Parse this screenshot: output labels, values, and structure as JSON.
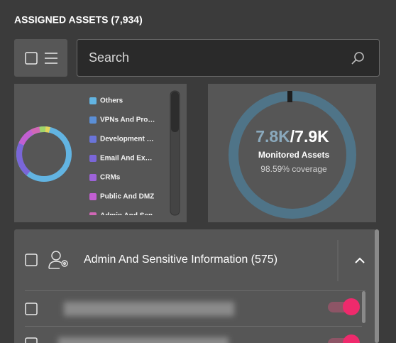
{
  "header": {
    "title": "ASSIGNED ASSETS (7,934)"
  },
  "search": {
    "placeholder": "Search"
  },
  "legend": {
    "items": [
      {
        "label": "Others",
        "color": "#62b4e2"
      },
      {
        "label": "VPNs And Pro…",
        "color": "#5b8fd6"
      },
      {
        "label": "Development …",
        "color": "#6a74d9"
      },
      {
        "label": "Email And Ex…",
        "color": "#7a66d8"
      },
      {
        "label": "CRMs",
        "color": "#9d63d9"
      },
      {
        "label": "Public And DMZ",
        "color": "#c25fd2"
      },
      {
        "label": "Admin And Sen…",
        "color": "#d167b6"
      }
    ]
  },
  "coverage": {
    "monitored": "7.8K",
    "total": "/7.9K",
    "label": "Monitored Assets",
    "note": "98.59% coverage"
  },
  "group": {
    "title": "Admin And Sensitive Information (575)"
  }
}
